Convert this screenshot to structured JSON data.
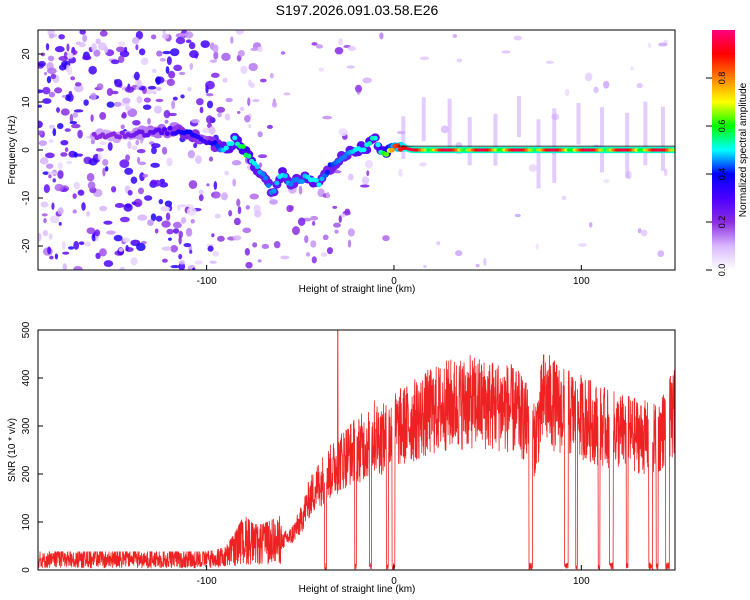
{
  "title": "S197.2026.091.03.58.E26",
  "chart_data": [
    {
      "type": "heatmap",
      "name": "spectrogram",
      "xlabel": "Height of straight line (km)",
      "ylabel": "Frequency (Hz)",
      "xlim": [
        -190,
        150
      ],
      "ylim": [
        -25,
        25
      ],
      "xticks": [
        -100,
        0,
        100
      ],
      "xtick_labels": [
        "-100",
        "0",
        "100"
      ],
      "yticks": [
        -20,
        -10,
        0,
        10,
        20
      ],
      "ytick_labels": [
        "-20",
        "-10",
        "0",
        "10",
        "20"
      ],
      "colorbar": {
        "label": "Normalized spectral amplitude",
        "range": [
          0,
          1
        ],
        "ticks": [
          0.0,
          0.2,
          0.4,
          0.6,
          0.8
        ],
        "tick_labels": [
          "0.0",
          "0.2",
          "0.4",
          "0.6",
          "0.8"
        ],
        "colors": [
          "#ffffff",
          "#d9b8ff",
          "#8a2be2",
          "#4b00ff",
          "#0000ff",
          "#00ffff",
          "#00ff00",
          "#ffff00",
          "#ff8000",
          "#ff0000",
          "#ff0080"
        ]
      },
      "carrier_track": {
        "x": [
          -150,
          -120,
          -110,
          -100,
          -95,
          -90,
          -85,
          -80,
          -75,
          -70,
          -65,
          -60,
          -55,
          -50,
          -45,
          -40,
          -35,
          -30,
          -25,
          -20,
          -15,
          -12,
          -10,
          -8,
          -5,
          -2,
          0,
          5,
          10,
          20,
          40,
          60,
          80,
          100,
          120,
          150
        ],
        "y": [
          3,
          4,
          3.5,
          2,
          1,
          0,
          2,
          0,
          -3,
          -5,
          -9,
          -5,
          -7,
          -6,
          -6,
          -7,
          -4,
          -2,
          -1,
          0,
          0.5,
          2,
          3,
          0.5,
          -1,
          0,
          1,
          0.5,
          0,
          0,
          0,
          0,
          0,
          0,
          0,
          0
        ],
        "amplitude": [
          0.2,
          0.3,
          0.4,
          0.3,
          0.4,
          0.5,
          0.5,
          0.6,
          0.5,
          0.45,
          0.45,
          0.5,
          0.45,
          0.45,
          0.5,
          0.5,
          0.4,
          0.45,
          0.45,
          0.5,
          0.5,
          0.55,
          0.5,
          0.5,
          0.6,
          0.7,
          0.85,
          0.9,
          0.95,
          0.95,
          0.95,
          0.95,
          0.95,
          0.95,
          0.95,
          0.95
        ]
      }
    },
    {
      "type": "line",
      "name": "snr",
      "xlabel": "Height of straight line (km)",
      "ylabel": "SNR (10 * v/v)",
      "xlim": [
        -190,
        150
      ],
      "ylim": [
        0,
        500
      ],
      "xticks": [
        -100,
        0,
        100
      ],
      "xtick_labels": [
        "-100",
        "0",
        "100"
      ],
      "yticks": [
        0,
        100,
        200,
        300,
        400,
        500
      ],
      "ytick_labels": [
        "0",
        "100",
        "200",
        "300",
        "400",
        "500"
      ],
      "series": [
        {
          "name": "SNR",
          "color": "#ee2222",
          "x": [
            -190,
            -170,
            -150,
            -130,
            -110,
            -100,
            -95,
            -90,
            -85,
            -80,
            -75,
            -70,
            -65,
            -60,
            -55,
            -50,
            -45,
            -40,
            -35,
            -30,
            -25,
            -20,
            -15,
            -10,
            -5,
            0,
            10,
            20,
            30,
            40,
            50,
            60,
            65,
            70,
            75,
            80,
            90,
            100,
            110,
            120,
            130,
            140,
            150
          ],
          "y": [
            20,
            20,
            20,
            20,
            20,
            20,
            22,
            25,
            40,
            60,
            50,
            50,
            55,
            60,
            70,
            100,
            150,
            180,
            200,
            220,
            240,
            250,
            260,
            280,
            270,
            290,
            310,
            330,
            345,
            350,
            345,
            340,
            330,
            310,
            270,
            360,
            330,
            320,
            300,
            290,
            280,
            270,
            330
          ]
        }
      ],
      "spikes": [
        {
          "x": -30,
          "y": 500
        }
      ],
      "dropouts": [
        [
          -37,
          -36
        ],
        [
          -21,
          -20
        ],
        [
          -13,
          -12
        ],
        [
          -4,
          -3
        ],
        [
          -1,
          0.5
        ],
        [
          72,
          74
        ],
        [
          91,
          93
        ],
        [
          97,
          98
        ],
        [
          109,
          110
        ],
        [
          115,
          117
        ],
        [
          124,
          125
        ],
        [
          136,
          138
        ],
        [
          140,
          141
        ],
        [
          145,
          147
        ]
      ]
    }
  ]
}
